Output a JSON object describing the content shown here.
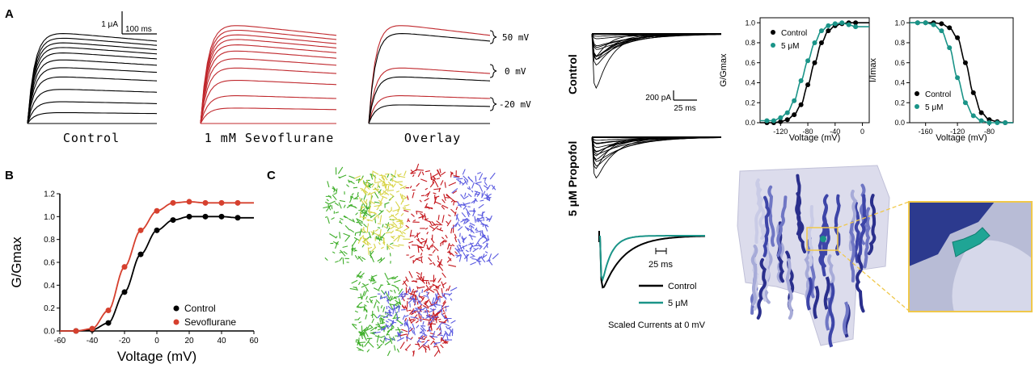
{
  "panels": {
    "left": {
      "letter_a": "A",
      "letter_b": "B",
      "letter_c": "C",
      "trace_labels": [
        "Control",
        "1 mM Sevoflurane",
        "Overlay"
      ],
      "scale_current": "1 μA",
      "scale_time": "100 ms",
      "overlay_voltages": [
        "50 mV",
        "0 mV",
        "-20 mV"
      ],
      "colors": {
        "control": "#000000",
        "sevoflurane": "#c0282d"
      }
    },
    "right": {
      "control_label": "Control",
      "propofol_label": "5 μM Propofol",
      "scale_current": "200 pA",
      "scale_time": "25 ms",
      "scaled_scale_time": "25 ms",
      "scaled_title": "Scaled Currents at 0 mV",
      "scaled_legend": [
        "Control",
        "5 μM"
      ],
      "colors": {
        "control": "#000000",
        "propofol": "#1a9488"
      }
    }
  },
  "chart_data": [
    {
      "type": "scatter",
      "panel": "B",
      "xlabel": "Voltage (mV)",
      "ylabel": "G/Gmax",
      "xlim": [
        -60,
        60
      ],
      "ylim": [
        0,
        1.2
      ],
      "xticks": [
        -60,
        -40,
        -20,
        0,
        20,
        40,
        60
      ],
      "yticks": [
        "0.0",
        "0.2",
        "0.4",
        "0.6",
        "0.8",
        "1.0",
        "1.2"
      ],
      "legend": "bottom-right",
      "series": [
        {
          "name": "Control",
          "color": "#000000",
          "x": [
            -50,
            -40,
            -30,
            -20,
            -10,
            0,
            10,
            20,
            30,
            40,
            50
          ],
          "y": [
            0.0,
            0.01,
            0.07,
            0.34,
            0.67,
            0.88,
            0.97,
            1.0,
            1.0,
            1.0,
            0.99
          ]
        },
        {
          "name": "Sevoflurane",
          "color": "#d6402e",
          "x": [
            -50,
            -40,
            -30,
            -20,
            -10,
            0,
            10,
            20,
            30,
            40,
            50
          ],
          "y": [
            0.0,
            0.02,
            0.18,
            0.56,
            0.88,
            1.05,
            1.12,
            1.13,
            1.12,
            1.12,
            1.12
          ]
        }
      ]
    },
    {
      "type": "scatter",
      "panel": "activation",
      "xlabel": "Voltage (mV)",
      "ylabel": "G/Gmax",
      "xlim": [
        -150,
        10
      ],
      "ylim": [
        0,
        1.05
      ],
      "xticks": [
        -120,
        -80,
        -40,
        0
      ],
      "yticks": [
        "0.0",
        "0.2",
        "0.4",
        "0.6",
        "0.8",
        "1.0"
      ],
      "legend": "top-left",
      "series": [
        {
          "name": "Control",
          "color": "#000000",
          "x": [
            -140,
            -130,
            -120,
            -110,
            -100,
            -90,
            -80,
            -70,
            -60,
            -50,
            -40,
            -30,
            -20,
            -10
          ],
          "y": [
            0.0,
            0.0,
            0.01,
            0.03,
            0.08,
            0.18,
            0.38,
            0.6,
            0.8,
            0.92,
            0.97,
            0.99,
            1.0,
            1.0
          ]
        },
        {
          "name": "5 μM",
          "color": "#1a9488",
          "x": [
            -140,
            -130,
            -120,
            -110,
            -100,
            -90,
            -80,
            -70,
            -60,
            -50,
            -40,
            -30,
            -20,
            -10
          ],
          "y": [
            0.02,
            0.02,
            0.05,
            0.1,
            0.22,
            0.42,
            0.62,
            0.8,
            0.92,
            0.97,
            0.99,
            1.0,
            0.98,
            0.96
          ]
        }
      ]
    },
    {
      "type": "scatter",
      "panel": "inactivation",
      "xlabel": "Voltage (mV)",
      "ylabel": "I/Imax",
      "xlim": [
        -180,
        -50
      ],
      "ylim": [
        0,
        1.05
      ],
      "xticks": [
        -160,
        -120,
        -80
      ],
      "yticks": [
        "0.0",
        "0.2",
        "0.4",
        "0.6",
        "0.8",
        "1.0"
      ],
      "legend": "bottom-left",
      "series": [
        {
          "name": "Control",
          "color": "#000000",
          "x": [
            -170,
            -160,
            -150,
            -140,
            -130,
            -120,
            -110,
            -100,
            -90,
            -80,
            -70,
            -60
          ],
          "y": [
            1.0,
            1.0,
            1.0,
            0.99,
            0.95,
            0.85,
            0.6,
            0.3,
            0.1,
            0.03,
            0.01,
            0.0
          ]
        },
        {
          "name": "5 μM",
          "color": "#1a9488",
          "x": [
            -170,
            -160,
            -150,
            -140,
            -130,
            -120,
            -110,
            -100,
            -90,
            -80,
            -70,
            -60
          ],
          "y": [
            1.0,
            1.0,
            0.98,
            0.92,
            0.75,
            0.45,
            0.2,
            0.07,
            0.02,
            0.0,
            0.0,
            0.0
          ]
        }
      ]
    }
  ]
}
